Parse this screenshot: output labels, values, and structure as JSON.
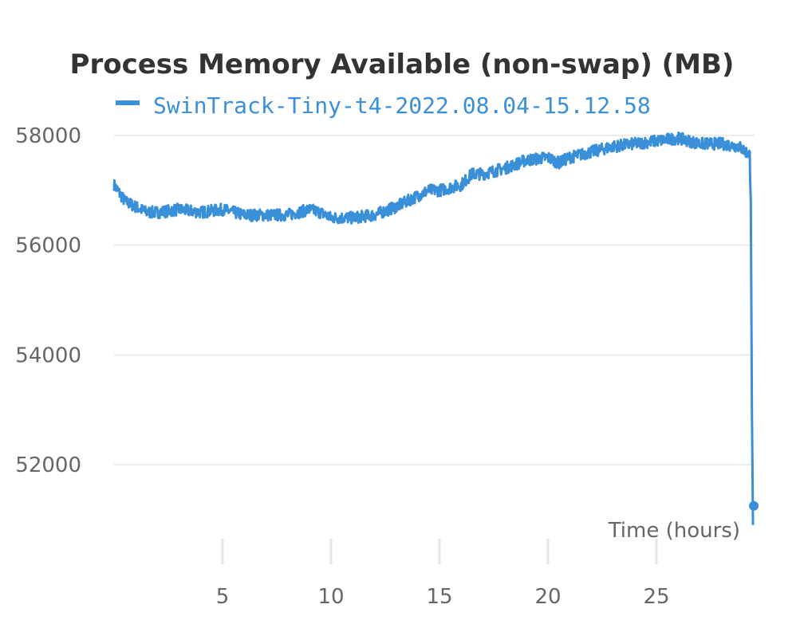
{
  "chart_data": {
    "type": "line",
    "title": "Process Memory Available (non-swap) (MB)",
    "xlabel": "Time (hours)",
    "ylabel": "",
    "xlim": [
      0,
      29.5
    ],
    "ylim": [
      50900,
      58000
    ],
    "x_ticks": [
      5,
      10,
      15,
      20,
      25
    ],
    "y_ticks": [
      52000,
      54000,
      56000,
      58000
    ],
    "grid": true,
    "legend_position": "top",
    "colors": {
      "series": "#3a8fd9",
      "grid": "#e6e6e6"
    },
    "series": [
      {
        "name": "SwinTrack-Tiny-t4-2022.08.04-15.12.58",
        "x": [
          0,
          0.5,
          1,
          1.5,
          2,
          3,
          4,
          5,
          6,
          7,
          8,
          9,
          9.5,
          10,
          11,
          12,
          13,
          14,
          14.5,
          15,
          16,
          16.5,
          17,
          18,
          19,
          20,
          20.5,
          21,
          22,
          23,
          24,
          25,
          26,
          27,
          28,
          28.8,
          29.3,
          29.35,
          29.4,
          29.45
        ],
        "y": [
          57100,
          56800,
          56700,
          56600,
          56600,
          56650,
          56600,
          56650,
          56550,
          56550,
          56550,
          56650,
          56600,
          56500,
          56500,
          56550,
          56700,
          56900,
          57000,
          57000,
          57100,
          57300,
          57300,
          57400,
          57550,
          57600,
          57500,
          57600,
          57700,
          57800,
          57850,
          57900,
          57950,
          57850,
          57850,
          57800,
          57650,
          56800,
          53000,
          50900
        ]
      }
    ]
  }
}
